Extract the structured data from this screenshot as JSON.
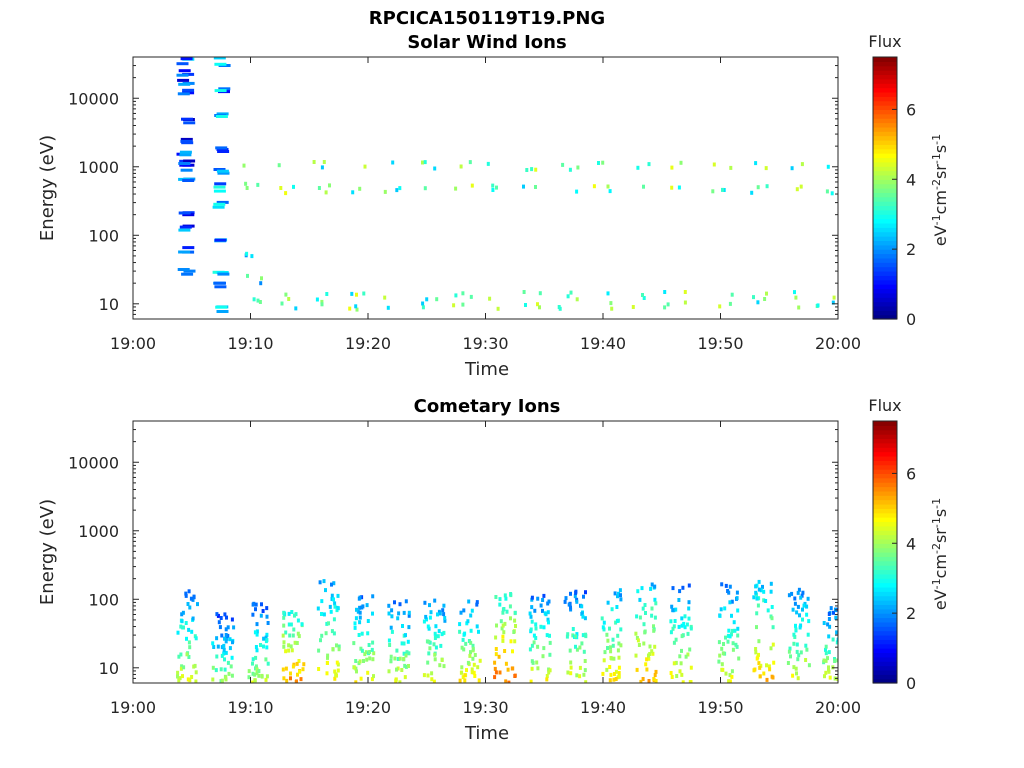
{
  "chart_data": [
    {
      "type": "heatmap",
      "suptitle": "RPCICA150119T19.PNG",
      "title": "Solar Wind Ions",
      "xlabel": "Time",
      "ylabel": "Energy (eV)",
      "x_ticks": [
        "19:00",
        "19:10",
        "19:20",
        "19:30",
        "19:40",
        "19:50",
        "20:00"
      ],
      "xlim": [
        "19:00",
        "20:00"
      ],
      "y_scale": "log",
      "y_ticks": [
        "10",
        "100",
        "1000",
        "10000"
      ],
      "ylim": [
        6,
        40000
      ],
      "colorbar": {
        "title": "Flux",
        "label": "eV-1cm-2sr-1s-1",
        "ticks": [
          "0",
          "2",
          "4",
          "6"
        ],
        "range": [
          0,
          7.5
        ],
        "colormap": "jet"
      },
      "bursts": [
        {
          "t": "19:04",
          "lines_eV": [
            30,
            65,
            130,
            230,
            700,
            1050,
            1300,
            1700,
            2500,
            5000,
            12000,
            17000,
            24000,
            36000
          ],
          "level": 1.5
        },
        {
          "t": "19:07",
          "lines_eV": [
            9,
            20,
            30,
            100,
            300,
            520,
            900,
            2000,
            6000,
            14000,
            36000
          ],
          "level": 2.0
        },
        {
          "t": "19:10",
          "lines_eV": [
            12,
            20,
            25,
            1200,
            550,
            60
          ],
          "level": 3.0
        },
        {
          "t": "19:13",
          "lines_eV": [
            10,
            14,
            1100,
            500
          ],
          "level": 3.5
        },
        {
          "t": "19:16",
          "lines_eV": [
            10,
            14,
            1100,
            500
          ],
          "level": 3.5
        },
        {
          "t": "19:19",
          "lines_eV": [
            10,
            14,
            1100,
            500
          ],
          "level": 3.5
        },
        {
          "t": "19:22",
          "lines_eV": [
            10,
            14,
            1100,
            500
          ],
          "level": 3.5
        },
        {
          "t": "19:25",
          "lines_eV": [
            10,
            14,
            1100,
            500
          ],
          "level": 3.5
        },
        {
          "t": "19:28",
          "lines_eV": [
            10,
            14,
            1100,
            500
          ],
          "level": 3.5
        },
        {
          "t": "19:31",
          "lines_eV": [
            10,
            14,
            1100,
            500
          ],
          "level": 3.5
        },
        {
          "t": "19:34",
          "lines_eV": [
            10,
            14,
            1100,
            500
          ],
          "level": 3.5
        },
        {
          "t": "19:37",
          "lines_eV": [
            10,
            14,
            1100,
            500
          ],
          "level": 3.5
        },
        {
          "t": "19:40",
          "lines_eV": [
            10,
            14,
            1100,
            500
          ],
          "level": 3.5
        },
        {
          "t": "19:43",
          "lines_eV": [
            10,
            14,
            1100,
            500
          ],
          "level": 3.5
        },
        {
          "t": "19:46",
          "lines_eV": [
            10,
            14,
            1100,
            500
          ],
          "level": 3.5
        },
        {
          "t": "19:50",
          "lines_eV": [
            10,
            14,
            1100,
            500
          ],
          "level": 3.5
        },
        {
          "t": "19:53",
          "lines_eV": [
            10,
            14,
            1100,
            500
          ],
          "level": 3.5
        },
        {
          "t": "19:56",
          "lines_eV": [
            10,
            14,
            1100,
            500
          ],
          "level": 3.5
        },
        {
          "t": "19:59",
          "lines_eV": [
            10,
            14,
            1100,
            500
          ],
          "level": 3.5
        }
      ]
    },
    {
      "type": "heatmap",
      "title": "Cometary Ions",
      "xlabel": "Time",
      "ylabel": "Energy (eV)",
      "x_ticks": [
        "19:00",
        "19:10",
        "19:20",
        "19:30",
        "19:40",
        "19:50",
        "20:00"
      ],
      "xlim": [
        "19:00",
        "20:00"
      ],
      "y_scale": "log",
      "y_ticks": [
        "10",
        "100",
        "1000",
        "10000"
      ],
      "ylim": [
        6,
        40000
      ],
      "colorbar": {
        "title": "Flux",
        "label": "eV-1cm-2sr-1s-1",
        "ticks": [
          "0",
          "2",
          "4",
          "6"
        ],
        "range": [
          0,
          7.5
        ],
        "colormap": "jet"
      },
      "bursts": [
        {
          "t": "19:04",
          "top_eV": 150,
          "peak": 4.5
        },
        {
          "t": "19:07",
          "top_eV": 70,
          "peak": 4.0
        },
        {
          "t": "19:10",
          "top_eV": 100,
          "peak": 4.2
        },
        {
          "t": "19:13",
          "top_eV": 80,
          "peak": 5.5
        },
        {
          "t": "19:16",
          "top_eV": 200,
          "peak": 4.8
        },
        {
          "t": "19:19",
          "top_eV": 120,
          "peak": 4.6
        },
        {
          "t": "19:22",
          "top_eV": 110,
          "peak": 4.4
        },
        {
          "t": "19:25",
          "top_eV": 110,
          "peak": 4.6
        },
        {
          "t": "19:28",
          "top_eV": 100,
          "peak": 4.8
        },
        {
          "t": "19:31",
          "top_eV": 130,
          "peak": 5.8
        },
        {
          "t": "19:34",
          "top_eV": 120,
          "peak": 4.6
        },
        {
          "t": "19:37",
          "top_eV": 140,
          "peak": 4.5
        },
        {
          "t": "19:40",
          "top_eV": 160,
          "peak": 4.8
        },
        {
          "t": "19:43",
          "top_eV": 180,
          "peak": 5.2
        },
        {
          "t": "19:46",
          "top_eV": 170,
          "peak": 4.6
        },
        {
          "t": "19:50",
          "top_eV": 180,
          "peak": 4.5
        },
        {
          "t": "19:53",
          "top_eV": 200,
          "peak": 5.2
        },
        {
          "t": "19:56",
          "top_eV": 150,
          "peak": 4.6
        },
        {
          "t": "19:59",
          "top_eV": 80,
          "peak": 4.5
        }
      ]
    }
  ]
}
